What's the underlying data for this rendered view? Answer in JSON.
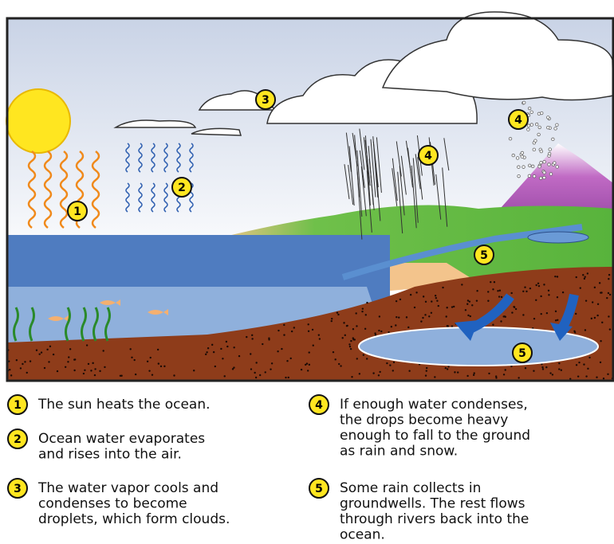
{
  "markers": [
    "1",
    "2",
    "3",
    "4",
    "4",
    "5",
    "5"
  ],
  "legend": [
    {
      "number": "1",
      "lines": [
        "The sun heats the ocean."
      ]
    },
    {
      "number": "2",
      "lines": [
        "Ocean water evaporates",
        "and rises into the air."
      ]
    },
    {
      "number": "3",
      "lines": [
        "The water vapor cools and",
        "condenses to become",
        "droplets, which form clouds."
      ]
    },
    {
      "number": "4",
      "lines": [
        "If enough water condenses,",
        "the drops become heavy",
        "enough to fall to the ground",
        "as rain and snow."
      ]
    },
    {
      "number": "5",
      "lines": [
        "Some rain collects in",
        "groundwells. The rest flows",
        "through rivers back into the",
        "ocean."
      ]
    }
  ]
}
